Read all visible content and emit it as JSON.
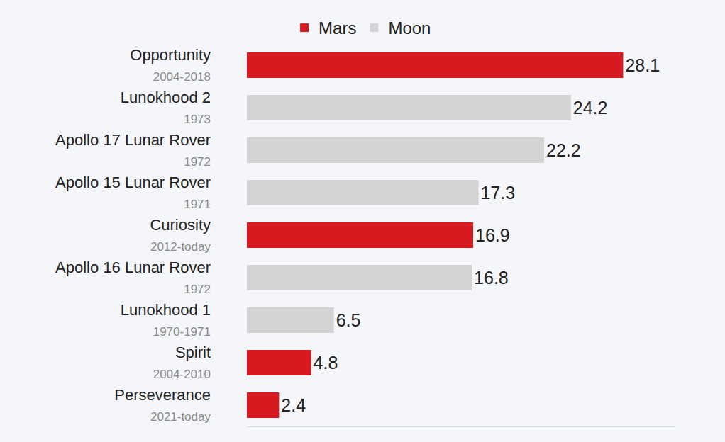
{
  "chart_data": {
    "type": "bar",
    "orientation": "horizontal",
    "categories": [
      "Opportunity",
      "Lunokhood 2",
      "Apollo 17 Lunar Rover",
      "Apollo 15 Lunar Rover",
      "Curiosity",
      "Apollo 16 Lunar Rover",
      "Lunokhood 1",
      "Spirit",
      "Perseverance"
    ],
    "periods": [
      "2004-2018",
      "1973",
      "1972",
      "1971",
      "2012-today",
      "1972",
      "1970-1971",
      "2004-2010",
      "2021-today"
    ],
    "series": [
      {
        "name": "Mars",
        "color": "#d71920",
        "values": [
          28.1,
          null,
          null,
          null,
          16.9,
          null,
          null,
          4.8,
          2.4
        ]
      },
      {
        "name": "Moon",
        "color": "#d3d3d3",
        "values": [
          null,
          24.2,
          22.2,
          17.3,
          null,
          16.8,
          6.5,
          null,
          null
        ]
      }
    ],
    "xlim": [
      0,
      32
    ],
    "xticks": [],
    "tick_labels": "y",
    "data_labels": true,
    "legend": "top",
    "grid": false
  }
}
